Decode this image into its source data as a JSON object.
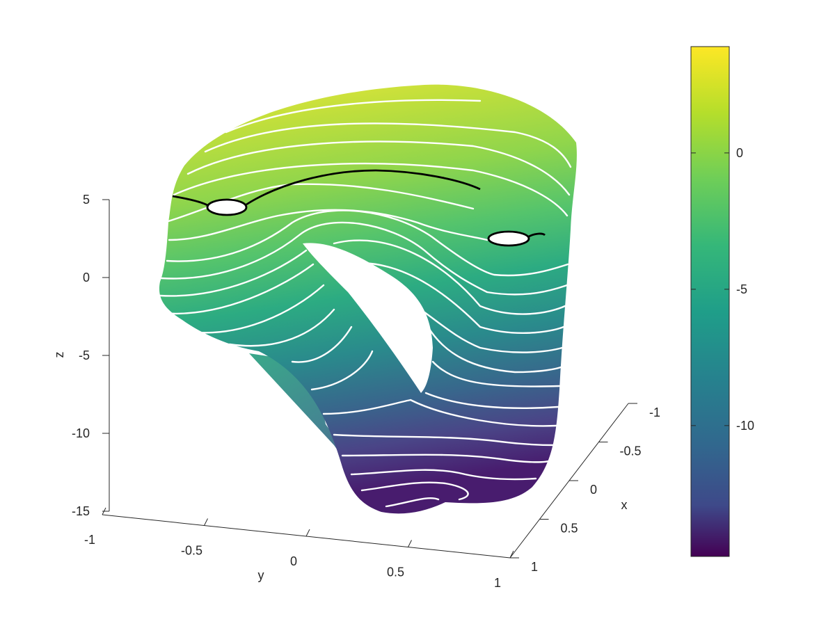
{
  "chart_data": {
    "type": "surface",
    "title": "",
    "xlabel": "x",
    "ylabel": "y",
    "zlabel": "z",
    "x_ticks": [
      "-1",
      "-0.5",
      "0",
      "0.5",
      "1"
    ],
    "y_ticks": [
      "-1",
      "-0.5",
      "0",
      "0.5",
      "1"
    ],
    "z_ticks": [
      "5",
      "0",
      "-5",
      "-10",
      "-15"
    ],
    "xlim": [
      -1,
      1
    ],
    "ylim": [
      -1,
      1
    ],
    "zlim": [
      -15,
      5
    ],
    "colorbar": {
      "colormap": "viridis",
      "range": [
        -14.8,
        3.9
      ],
      "ticks": [
        "0",
        "-5",
        "-10"
      ]
    },
    "contour_lines": {
      "color": "#ffffff",
      "highlight_level_color": "#000000"
    },
    "grid": false
  }
}
